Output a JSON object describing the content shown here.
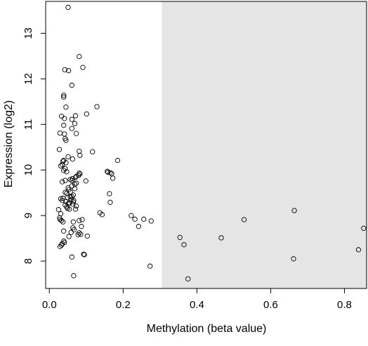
{
  "chart_data": {
    "type": "scatter",
    "xlabel": "Methylation (beta value)",
    "ylabel": "Expression (log2)",
    "xlim": [
      -0.01,
      0.86
    ],
    "ylim": [
      7.4,
      13.7
    ],
    "x_ticks": [
      {
        "value": 0.0,
        "label": "0.0"
      },
      {
        "value": 0.2,
        "label": "0.2"
      },
      {
        "value": 0.4,
        "label": "0.4"
      },
      {
        "value": 0.6,
        "label": "0.6"
      },
      {
        "value": 0.8,
        "label": "0.8"
      }
    ],
    "y_ticks": [
      {
        "value": 8,
        "label": "8"
      },
      {
        "value": 9,
        "label": "9"
      },
      {
        "value": 10,
        "label": "10"
      },
      {
        "value": 11,
        "label": "11"
      },
      {
        "value": 12,
        "label": "12"
      },
      {
        "value": 13,
        "label": "13"
      }
    ],
    "shaded_region": {
      "x_from": 0.305,
      "x_to": 0.86,
      "color": "#e5e5e5"
    },
    "grid": false,
    "point_style": {
      "shape": "open-circle",
      "color": "#000000"
    },
    "points": [
      [
        0.051,
        13.57
      ],
      [
        0.081,
        12.49
      ],
      [
        0.091,
        12.25
      ],
      [
        0.042,
        12.2
      ],
      [
        0.052,
        12.18
      ],
      [
        0.061,
        11.86
      ],
      [
        0.039,
        11.64
      ],
      [
        0.039,
        11.6
      ],
      [
        0.129,
        11.39
      ],
      [
        0.045,
        11.38
      ],
      [
        0.101,
        11.23
      ],
      [
        0.071,
        11.19
      ],
      [
        0.041,
        11.13
      ],
      [
        0.061,
        11.11
      ],
      [
        0.033,
        11.18
      ],
      [
        0.069,
        11.02
      ],
      [
        0.039,
        10.98
      ],
      [
        0.061,
        10.91
      ],
      [
        0.029,
        10.81
      ],
      [
        0.041,
        10.79
      ],
      [
        0.073,
        10.8
      ],
      [
        0.043,
        10.69
      ],
      [
        0.045,
        10.65
      ],
      [
        0.117,
        10.4
      ],
      [
        0.027,
        10.45
      ],
      [
        0.081,
        10.41
      ],
      [
        0.083,
        10.32
      ],
      [
        0.051,
        10.29
      ],
      [
        0.063,
        10.24
      ],
      [
        0.039,
        10.21
      ],
      [
        0.037,
        10.19
      ],
      [
        0.045,
        10.16
      ],
      [
        0.031,
        10.09
      ],
      [
        0.035,
        10.12
      ],
      [
        0.185,
        10.21
      ],
      [
        0.043,
        10.03
      ],
      [
        0.039,
        9.99
      ],
      [
        0.047,
        9.96
      ],
      [
        0.081,
        9.93
      ],
      [
        0.073,
        9.86
      ],
      [
        0.071,
        9.84
      ],
      [
        0.157,
        9.97
      ],
      [
        0.159,
        9.95
      ],
      [
        0.169,
        9.92
      ],
      [
        0.165,
        9.94
      ],
      [
        0.172,
        9.82
      ],
      [
        0.079,
        9.88
      ],
      [
        0.083,
        9.91
      ],
      [
        0.063,
        9.81
      ],
      [
        0.061,
        9.77
      ],
      [
        0.057,
        9.79
      ],
      [
        0.099,
        9.76
      ],
      [
        0.043,
        9.77
      ],
      [
        0.035,
        9.74
      ],
      [
        0.073,
        9.71
      ],
      [
        0.069,
        9.69
      ],
      [
        0.061,
        9.65
      ],
      [
        0.051,
        9.61
      ],
      [
        0.069,
        9.59
      ],
      [
        0.057,
        9.52
      ],
      [
        0.053,
        9.57
      ],
      [
        0.047,
        9.49
      ],
      [
        0.043,
        9.51
      ],
      [
        0.163,
        9.48
      ],
      [
        0.065,
        9.45
      ],
      [
        0.061,
        9.42
      ],
      [
        0.057,
        9.41
      ],
      [
        0.049,
        9.39
      ],
      [
        0.037,
        9.38
      ],
      [
        0.031,
        9.37
      ],
      [
        0.035,
        9.33
      ],
      [
        0.045,
        9.31
      ],
      [
        0.059,
        9.35
      ],
      [
        0.065,
        9.3
      ],
      [
        0.055,
        9.28
      ],
      [
        0.051,
        9.26
      ],
      [
        0.043,
        9.23
      ],
      [
        0.066,
        9.33
      ],
      [
        0.047,
        9.19
      ],
      [
        0.049,
        9.16
      ],
      [
        0.054,
        9.14
      ],
      [
        0.073,
        9.21
      ],
      [
        0.071,
        9.14
      ],
      [
        0.025,
        9.13
      ],
      [
        0.165,
        9.29
      ],
      [
        0.064,
        9.25
      ],
      [
        0.137,
        9.06
      ],
      [
        0.143,
        9.02
      ],
      [
        0.031,
        9.04
      ],
      [
        0.028,
        8.95
      ],
      [
        0.029,
        8.91
      ],
      [
        0.033,
        8.89
      ],
      [
        0.037,
        8.86
      ],
      [
        0.065,
        8.86
      ],
      [
        0.081,
        8.89
      ],
      [
        0.089,
        8.91
      ],
      [
        0.222,
        9.0
      ],
      [
        0.232,
        8.92
      ],
      [
        0.256,
        8.92
      ],
      [
        0.276,
        8.88
      ],
      [
        0.242,
        8.76
      ],
      [
        0.087,
        8.76
      ],
      [
        0.064,
        8.73
      ],
      [
        0.067,
        8.69
      ],
      [
        0.039,
        8.66
      ],
      [
        0.059,
        8.63
      ],
      [
        0.081,
        8.62
      ],
      [
        0.085,
        8.59
      ],
      [
        0.078,
        8.58
      ],
      [
        0.053,
        8.54
      ],
      [
        0.103,
        8.55
      ],
      [
        0.039,
        8.44
      ],
      [
        0.041,
        8.41
      ],
      [
        0.035,
        8.38
      ],
      [
        0.033,
        8.35
      ],
      [
        0.029,
        8.32
      ],
      [
        0.093,
        8.15
      ],
      [
        0.095,
        8.14
      ],
      [
        0.061,
        8.09
      ],
      [
        0.273,
        7.89
      ],
      [
        0.066,
        7.68
      ],
      [
        0.354,
        8.52
      ],
      [
        0.365,
        8.36
      ],
      [
        0.376,
        7.61
      ],
      [
        0.466,
        8.51
      ],
      [
        0.528,
        8.91
      ],
      [
        0.664,
        9.11
      ],
      [
        0.662,
        8.05
      ],
      [
        0.838,
        8.25
      ],
      [
        0.852,
        8.72
      ]
    ]
  }
}
